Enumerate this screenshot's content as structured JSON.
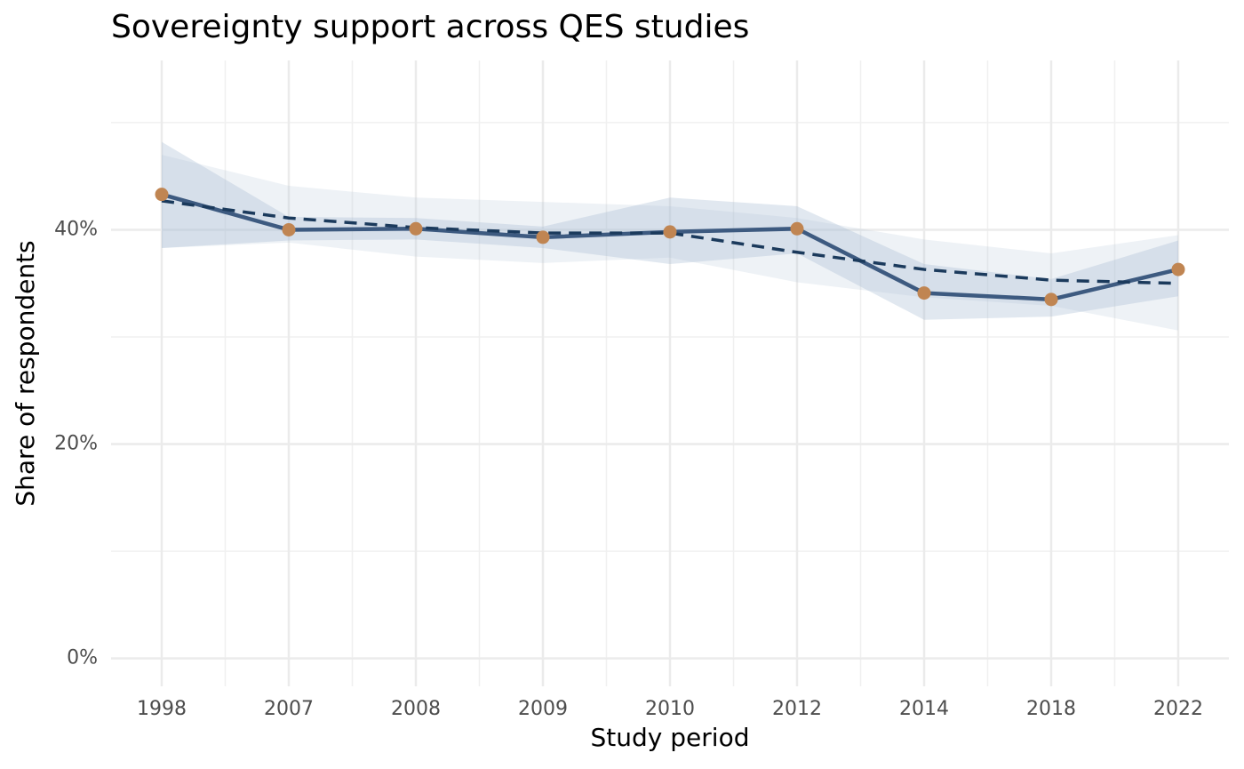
{
  "chart_data": {
    "type": "line",
    "title": "Sovereignty support across QES studies",
    "x_label": "Study period",
    "y_label": "Share of respondents",
    "categories": [
      "1998",
      "2007",
      "2008",
      "2009",
      "2010",
      "2012",
      "2014",
      "2018",
      "2022"
    ],
    "values": [
      43.3,
      40.0,
      40.1,
      39.3,
      39.8,
      40.1,
      34.1,
      33.5,
      36.3
    ],
    "lower": [
      38.3,
      39.0,
      39.1,
      38.3,
      36.8,
      37.8,
      31.6,
      31.9,
      33.8
    ],
    "upper": [
      48.2,
      41.2,
      41.1,
      40.3,
      43.0,
      42.2,
      36.8,
      35.4,
      39.0
    ],
    "trend": [
      42.7,
      41.1,
      40.2,
      39.7,
      39.7,
      37.9,
      36.3,
      35.3,
      35.0
    ],
    "trend_lower": [
      38.3,
      38.8,
      37.5,
      36.9,
      37.4,
      35.1,
      33.7,
      32.9,
      30.6
    ],
    "trend_upper": [
      47.0,
      44.1,
      43.0,
      42.6,
      42.2,
      41.1,
      39.1,
      37.8,
      39.5
    ],
    "line_color": "#3d5a80",
    "point_color": "#c08552",
    "trend_color": "#1b3a5c",
    "band_color": "#a9bdd3",
    "ylim": [
      -2.6,
      55.8
    ],
    "yticks": [
      {
        "value": 0,
        "label": "0%"
      },
      {
        "value": 20,
        "label": "20%"
      },
      {
        "value": 40,
        "label": "40%"
      }
    ],
    "yminor": [
      10,
      30,
      50
    ],
    "grid": true
  }
}
